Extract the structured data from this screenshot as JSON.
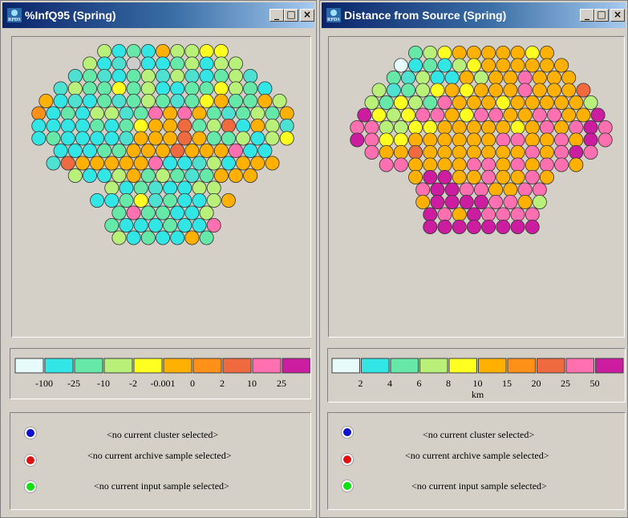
{
  "windows": [
    {
      "title": "%InfQ95 (Spring)",
      "controls": [
        "_",
        "□",
        "×"
      ],
      "map": {
        "rows": [
          "LCGCOLLYY",
          "LCTDCCGLCLL",
          "TGTCGLTLTCGLT",
          "TLGGYGLCCGGYLGC",
          "OCTCGTGLGTGYOGGOL",
          "ECGCLLTGPOPOGTGLGO",
          "CCCCGCGYOORGLRCOLT",
          "CGCCCCTOOOROGGLCLY",
          "CCCGGOOOROOOPCC",
          "TROOOOOPCCTLCOOO",
          "LCCLOGLGTGOOO",
          "LCGTCCLL",
          "CCGYTGCCLO",
          "GPGGCCL",
          "GCCCGCCP",
          "LCGCCOG"
        ]
      },
      "legend": {
        "swatches": [
          "#e8fbfb",
          "#33e6e6",
          "#66e8a8",
          "#b8f07a",
          "#ffff20",
          "#ffb000",
          "#ff9018",
          "#f06a40",
          "#ff70b0",
          "#cc1ca0"
        ],
        "labels": [
          "-100",
          "-25",
          "-10",
          "-2",
          "-0.001",
          "0",
          "2",
          "10",
          "25"
        ],
        "unit": ""
      },
      "info": [
        {
          "icon": "blue-dot-icon",
          "color": "#1010d0",
          "text": "<no current cluster selected>"
        },
        {
          "icon": "red-dot-icon",
          "color": "#e01010",
          "text": "<no current archive sample selected>"
        },
        {
          "icon": "green-dot-icon",
          "color": "#10e010",
          "text": "<no current input sample selected>"
        }
      ]
    },
    {
      "title": "Distance from Source (Spring)",
      "controls": [
        "_",
        "□",
        "×"
      ],
      "map": {
        "rows": [
          "GLYOOOOOYO",
          "ACGCLYOOOOOO",
          "GTLCCOLOOPOOO",
          "LTGLYOYOOOPOOOR",
          "LGYLGPOOOYOOOOOL",
          "MYLYPPOYPPOOPPOOM",
          "PPLLYYOOOOOYOPOPMP",
          "MPYYOOOOOOPPOOPOMP",
          "POOROOOOOOOPOPMP",
          "PPOOOOPPOPOPPO",
          "OMMOOPOOPO",
          "PMMPPOOPP",
          "OMMMMPPOL",
          "MPOMPPPP",
          "MMMMMMMM"
        ]
      },
      "legend": {
        "swatches": [
          "#e8fbfb",
          "#33e6e6",
          "#66e8a8",
          "#b8f07a",
          "#ffff20",
          "#ffb000",
          "#ff9018",
          "#f06a40",
          "#ff70b0",
          "#cc1ca0"
        ],
        "labels": [
          "2",
          "4",
          "6",
          "8",
          "10",
          "15",
          "20",
          "25",
          "50"
        ],
        "unit": "km"
      },
      "info": [
        {
          "icon": "blue-dot-icon",
          "color": "#1010d0",
          "text": "<no current cluster selected>"
        },
        {
          "icon": "red-dot-icon",
          "color": "#e01010",
          "text": "<no current archive sample selected>"
        },
        {
          "icon": "green-dot-icon",
          "color": "#10e010",
          "text": "<no current input sample selected>"
        }
      ]
    }
  ],
  "palette": {
    "A": "#e8fbfb",
    "C": "#33e6e6",
    "T": "#4ee0d0",
    "G": "#66e8a8",
    "L": "#b8f07a",
    "Y": "#ffff20",
    "O": "#ffb000",
    "E": "#ff9018",
    "R": "#f06a40",
    "P": "#ff70b0",
    "M": "#cc1ca0"
  }
}
